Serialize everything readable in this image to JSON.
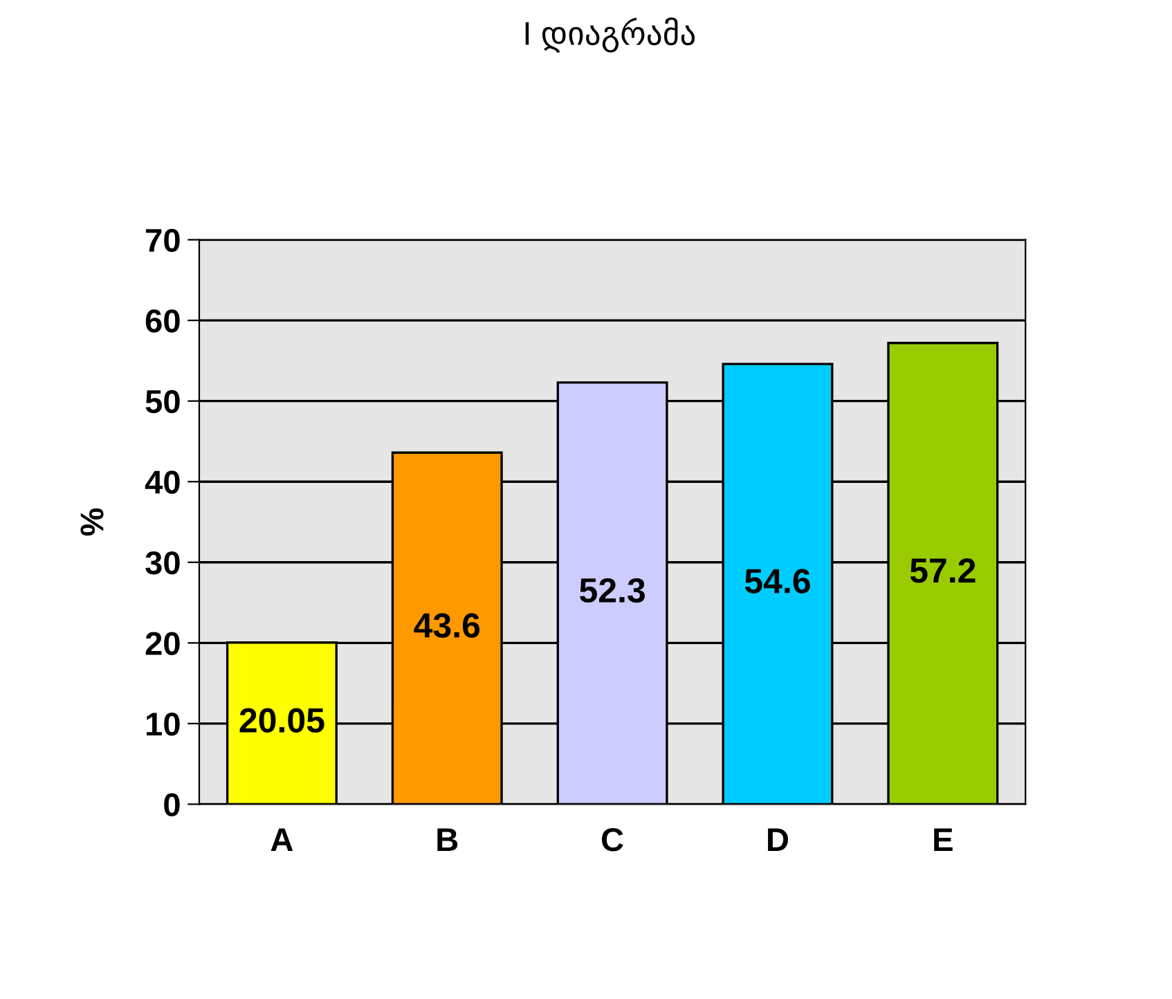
{
  "chart_data": {
    "type": "bar",
    "title": "I დიაგრამა",
    "ylabel": "%",
    "categories": [
      "A",
      "B",
      "C",
      "D",
      "E"
    ],
    "values": [
      20.05,
      43.6,
      52.3,
      54.6,
      57.2
    ],
    "colors": [
      "#ffff00",
      "#ff9900",
      "#ccccff",
      "#00ccff",
      "#99cc00"
    ],
    "ylim": [
      0,
      70
    ],
    "yticks": [
      0,
      10,
      20,
      30,
      40,
      50,
      60,
      70
    ],
    "grid": "y",
    "data_labels": true,
    "legend": false
  }
}
